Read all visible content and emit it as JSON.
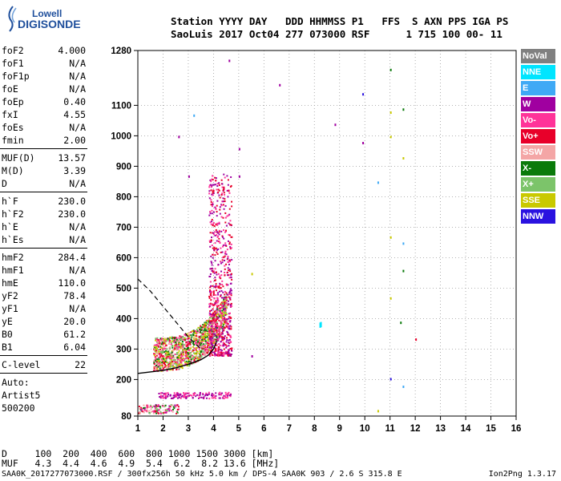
{
  "logo": {
    "line1": "Lowell",
    "line2": "DIGISONDE"
  },
  "header": {
    "line1": "Station YYYY DAY   DDD HHMMSS P1   FFS  S AXN PPS IGA PS",
    "line2": "SaoLuis 2017 Oct04 277 073000 RSF      1 715 100 00- 11"
  },
  "params": {
    "g1": [
      {
        "name": "foF2",
        "value": "4.000"
      },
      {
        "name": "foF1",
        "value": "N/A"
      },
      {
        "name": "foF1p",
        "value": "N/A"
      },
      {
        "name": "foE",
        "value": "N/A"
      },
      {
        "name": "foEp",
        "value": "0.40"
      },
      {
        "name": "fxI",
        "value": "4.55"
      },
      {
        "name": "foEs",
        "value": "N/A"
      },
      {
        "name": "fmin",
        "value": "2.00"
      }
    ],
    "g2": [
      {
        "name": "MUF(D)",
        "value": "13.57"
      },
      {
        "name": "M(D)",
        "value": "3.39"
      },
      {
        "name": "D",
        "value": "N/A"
      }
    ],
    "g3": [
      {
        "name": "h`F",
        "value": "230.0"
      },
      {
        "name": "h`F2",
        "value": "230.0"
      },
      {
        "name": "h`E",
        "value": "N/A"
      },
      {
        "name": "h`Es",
        "value": "N/A"
      }
    ],
    "g4": [
      {
        "name": "hmF2",
        "value": "284.4"
      },
      {
        "name": "hmF1",
        "value": "N/A"
      },
      {
        "name": "hmE",
        "value": "110.0"
      },
      {
        "name": "yF2",
        "value": "78.4"
      },
      {
        "name": "yF1",
        "value": "N/A"
      },
      {
        "name": "yE",
        "value": "20.0"
      },
      {
        "name": "B0",
        "value": "61.2"
      },
      {
        "name": "B1",
        "value": "6.04"
      }
    ],
    "g5": [
      {
        "name": "C-level",
        "value": "22"
      }
    ],
    "auto": [
      "Auto:",
      "Artist5",
      "500200"
    ]
  },
  "legend": [
    {
      "label": "NoVal",
      "color": "#808080"
    },
    {
      "label": "NNE",
      "color": "#00e5ff"
    },
    {
      "label": "E",
      "color": "#3fa9f5"
    },
    {
      "label": "W",
      "color": "#a000a0"
    },
    {
      "label": "Vo-",
      "color": "#ff3399"
    },
    {
      "label": "Vo+",
      "color": "#e8002a"
    },
    {
      "label": "SSW",
      "color": "#f4a6a6"
    },
    {
      "label": "X-",
      "color": "#0a7a0a"
    },
    {
      "label": "X+",
      "color": "#7cc46a"
    },
    {
      "label": "SSE",
      "color": "#c9c900"
    },
    {
      "label": "NNW",
      "color": "#2a12e0"
    }
  ],
  "footer": {
    "d_line": "D     100  200  400  600  800 1000 1500 3000 [km]",
    "muf_line": "MUF   4.3  4.4  4.6  4.9  5.4  6.2  8.2 13.6 [MHz]",
    "file_line": "SAA0K_2017277073000.RSF / 300fx256h 50 kHz 5.0 km / DPS-4 SAA0K 903 / 2.6 S 315.8 E",
    "version": "Ion2Png 1.3.17"
  },
  "chart_data": {
    "type": "scatter",
    "title": "",
    "xlabel": "",
    "ylabel": "",
    "xlim": [
      1,
      16
    ],
    "ylim": [
      80,
      1280
    ],
    "xticks": [
      1,
      2,
      3,
      4,
      5,
      6,
      7,
      8,
      9,
      10,
      11,
      12,
      13,
      14,
      15,
      16
    ],
    "yticks": [
      80,
      200,
      300,
      400,
      500,
      600,
      700,
      800,
      900,
      1000,
      1100,
      1280
    ],
    "grid": true,
    "traces": {
      "F_layer_profile": {
        "x": [
          1.0,
          1.5,
          2.0,
          2.5,
          3.0,
          3.5,
          3.8,
          4.0,
          4.1
        ],
        "y": [
          220,
          225,
          230,
          238,
          250,
          265,
          280,
          300,
          320
        ]
      },
      "dashed_line": {
        "x": [
          1.0,
          1.5,
          2.0,
          2.5,
          3.0,
          3.5
        ],
        "y": [
          530,
          490,
          440,
          390,
          340,
          300
        ]
      }
    },
    "clusters": [
      {
        "label": "Vo+",
        "x": [
          1.6,
          4.4
        ],
        "y": [
          220,
          330
        ]
      },
      {
        "label": "Vo-",
        "x": [
          3.7,
          4.5
        ],
        "y": [
          300,
          900
        ]
      },
      {
        "label": "X+",
        "x": [
          2.5,
          4.4
        ],
        "y": [
          250,
          340
        ]
      },
      {
        "label": "NNW",
        "x": [
          3.9,
          4.7
        ],
        "y": [
          300,
          420
        ]
      },
      {
        "label": "W",
        "x": [
          1.8,
          4.7
        ],
        "y": [
          140,
          160
        ]
      },
      {
        "label": "NNE",
        "x": [
          8.2,
          8.3
        ],
        "y": [
          375,
          390
        ]
      }
    ]
  }
}
